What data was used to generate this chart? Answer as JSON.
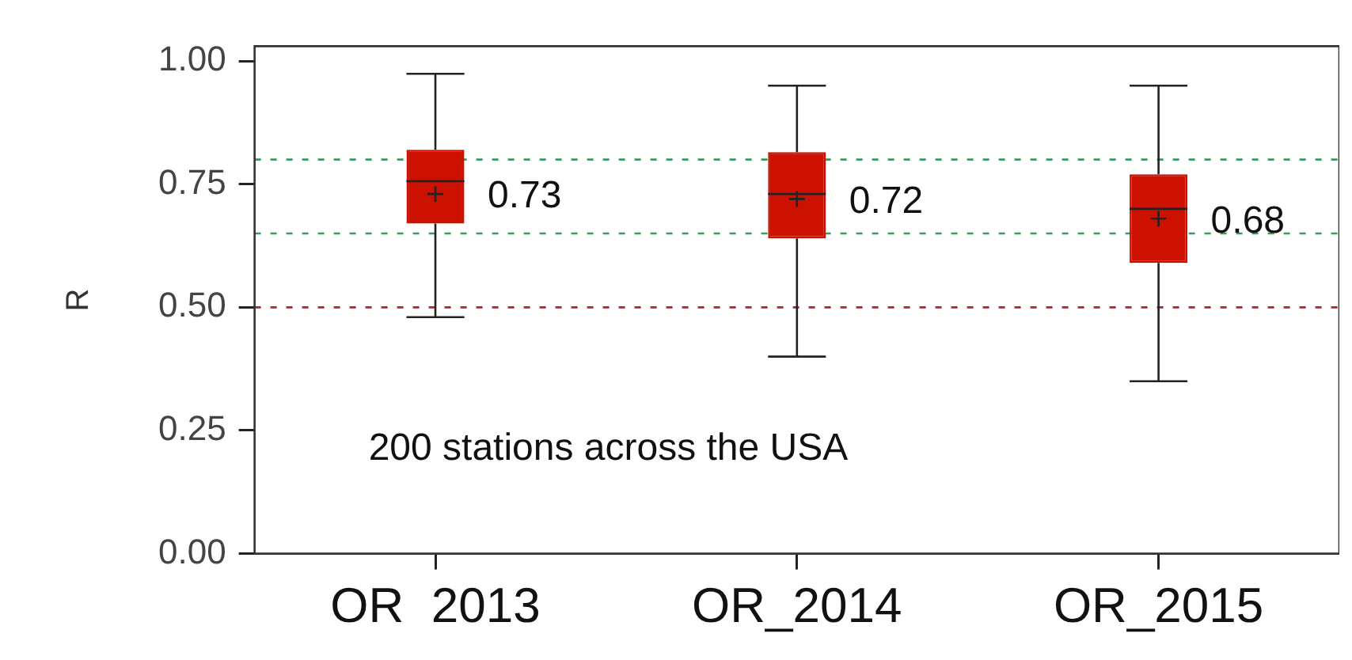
{
  "chart_data": {
    "type": "box",
    "ylabel": "R",
    "categories": [
      "OR  2013",
      "OR_2014",
      "OR_2015"
    ],
    "series": [
      {
        "color": "#cc1100",
        "boxes": [
          {
            "low": 0.48,
            "q1": 0.67,
            "median": 0.756,
            "q3": 0.82,
            "high": 0.974,
            "mean": 0.73
          },
          {
            "low": 0.4,
            "q1": 0.64,
            "median": 0.73,
            "q3": 0.815,
            "high": 0.95,
            "mean": 0.72
          },
          {
            "low": 0.35,
            "q1": 0.59,
            "median": 0.7,
            "q3": 0.77,
            "high": 0.95,
            "mean": 0.68
          }
        ]
      }
    ],
    "ylim": [
      0,
      1.03
    ],
    "yticks": [
      {
        "value": 0,
        "label": "0.00"
      },
      {
        "value": 0.25,
        "label": "0.25"
      },
      {
        "value": 0.5,
        "label": "0.50"
      },
      {
        "value": 0.75,
        "label": "0.75"
      },
      {
        "value": 1,
        "label": "1.00"
      }
    ],
    "ref_lines": [
      {
        "axis": "y",
        "value": 0.8,
        "color": "#3a9a5a",
        "line_style": "dashed"
      },
      {
        "axis": "y",
        "value": 0.65,
        "color": "#3a9a5a",
        "line_style": "dashed"
      },
      {
        "axis": "y",
        "value": 0.5,
        "color": "#b22222",
        "line_style": "dashed"
      }
    ],
    "annotations": [
      "0.73",
      "0.72",
      "0.68",
      "200 stations across the USA"
    ],
    "grid": false,
    "legend": false
  }
}
